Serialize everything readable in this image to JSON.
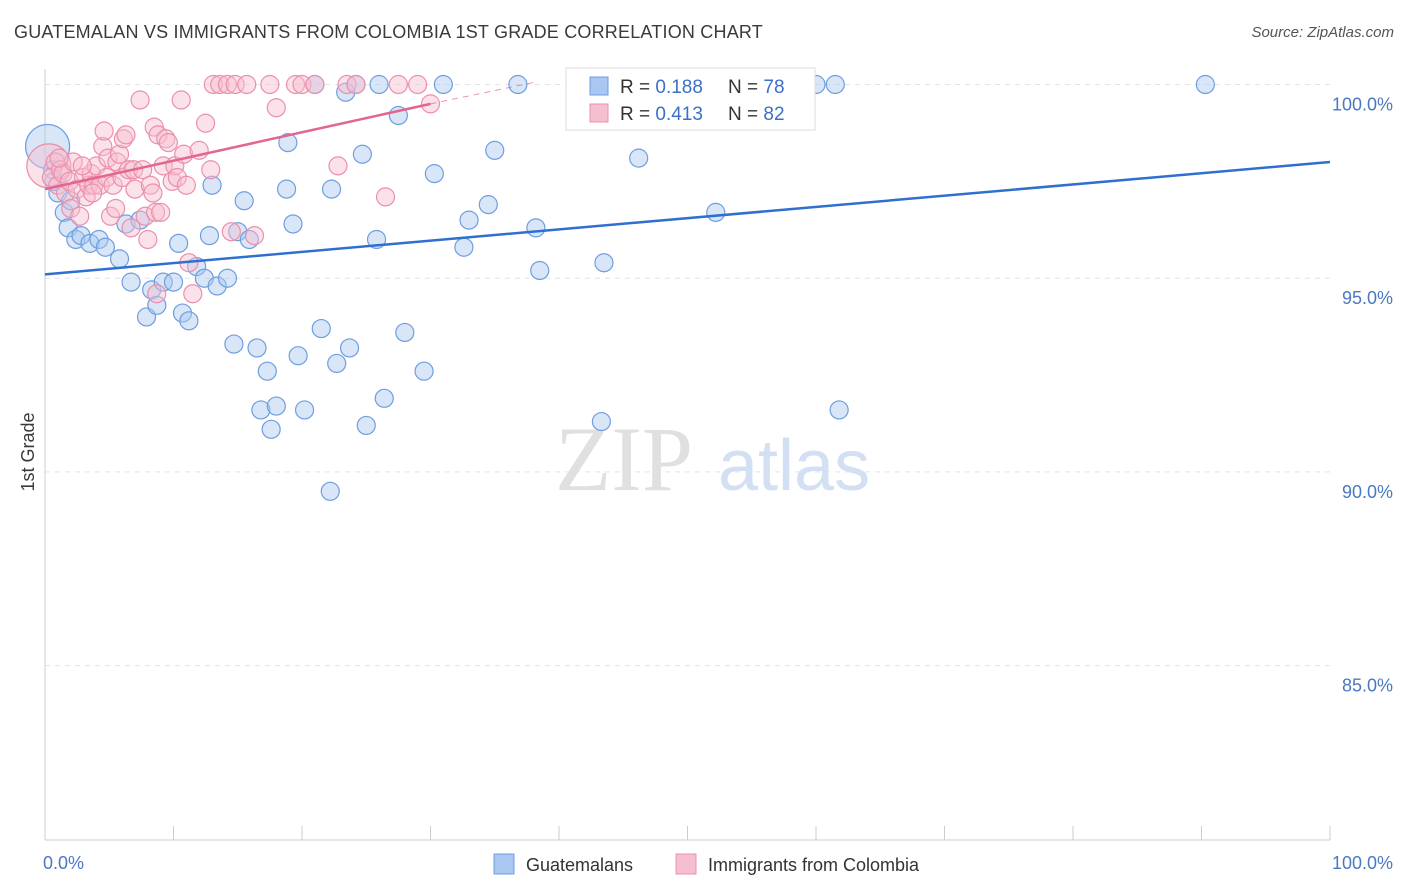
{
  "title": "GUATEMALAN VS IMMIGRANTS FROM COLOMBIA 1ST GRADE CORRELATION CHART",
  "source": "Source: ZipAtlas.com",
  "watermark": {
    "zip": "ZIP",
    "atlas": "atlas"
  },
  "chart_data": {
    "type": "scatter",
    "xlabel": "",
    "ylabel": "1st Grade",
    "xlim": [
      0,
      100
    ],
    "ylim": [
      80.5,
      100.4
    ],
    "x_tick_labels": [
      "0.0%",
      "100.0%"
    ],
    "y_ticks": [
      {
        "value": 100,
        "label": "100.0%"
      },
      {
        "value": 95,
        "label": "95.0%"
      },
      {
        "value": 90,
        "label": "90.0%"
      },
      {
        "value": 85,
        "label": "85.0%"
      }
    ],
    "legend_stats": [
      {
        "r_label": "R = ",
        "r_value": "0.188",
        "n_label": "N = ",
        "n_value": "78"
      },
      {
        "r_label": "R = ",
        "r_value": "0.413",
        "n_label": "N = ",
        "n_value": "82"
      }
    ],
    "series": [
      {
        "name": "Guatemalans",
        "color": "#6e9ee0",
        "fill": "#a9c7f0",
        "trend": {
          "x": [
            0,
            100
          ],
          "y": [
            95.1,
            98.0
          ],
          "color": "#2f6fcf"
        },
        "points": [
          {
            "x": 0.2,
            "y": 98.4,
            "big": true
          },
          {
            "x": 0.6,
            "y": 97.8
          },
          {
            "x": 1.0,
            "y": 97.2
          },
          {
            "x": 1.5,
            "y": 96.7
          },
          {
            "x": 1.8,
            "y": 96.3
          },
          {
            "x": 2.4,
            "y": 96.0
          },
          {
            "x": 2.8,
            "y": 96.1
          },
          {
            "x": 3.5,
            "y": 95.9
          },
          {
            "x": 4.2,
            "y": 96.0
          },
          {
            "x": 4.7,
            "y": 95.8
          },
          {
            "x": 5.8,
            "y": 95.5
          },
          {
            "x": 6.3,
            "y": 96.4
          },
          {
            "x": 6.7,
            "y": 94.9
          },
          {
            "x": 7.4,
            "y": 96.5
          },
          {
            "x": 7.9,
            "y": 94.0
          },
          {
            "x": 8.3,
            "y": 94.7
          },
          {
            "x": 8.7,
            "y": 94.3
          },
          {
            "x": 9.2,
            "y": 94.9
          },
          {
            "x": 10.0,
            "y": 94.9
          },
          {
            "x": 10.4,
            "y": 95.9
          },
          {
            "x": 10.7,
            "y": 94.1
          },
          {
            "x": 11.2,
            "y": 93.9
          },
          {
            "x": 11.8,
            "y": 95.3
          },
          {
            "x": 12.4,
            "y": 95.0
          },
          {
            "x": 12.8,
            "y": 96.1
          },
          {
            "x": 13.0,
            "y": 97.4
          },
          {
            "x": 13.4,
            "y": 94.8
          },
          {
            "x": 14.2,
            "y": 95.0
          },
          {
            "x": 14.7,
            "y": 93.3
          },
          {
            "x": 15.0,
            "y": 96.2
          },
          {
            "x": 15.5,
            "y": 97.0
          },
          {
            "x": 15.9,
            "y": 96.0
          },
          {
            "x": 16.5,
            "y": 93.2
          },
          {
            "x": 16.8,
            "y": 91.6
          },
          {
            "x": 17.3,
            "y": 92.6
          },
          {
            "x": 17.6,
            "y": 91.1
          },
          {
            "x": 18.0,
            "y": 91.7
          },
          {
            "x": 18.8,
            "y": 97.3
          },
          {
            "x": 18.9,
            "y": 98.5
          },
          {
            "x": 19.3,
            "y": 96.4
          },
          {
            "x": 19.7,
            "y": 93.0
          },
          {
            "x": 20.2,
            "y": 91.6
          },
          {
            "x": 21.0,
            "y": 100.0
          },
          {
            "x": 21.5,
            "y": 93.7
          },
          {
            "x": 22.2,
            "y": 89.5
          },
          {
            "x": 22.3,
            "y": 97.3
          },
          {
            "x": 22.7,
            "y": 92.8
          },
          {
            "x": 23.4,
            "y": 99.8
          },
          {
            "x": 23.7,
            "y": 93.2
          },
          {
            "x": 24.2,
            "y": 100.0
          },
          {
            "x": 24.7,
            "y": 98.2
          },
          {
            "x": 25.0,
            "y": 91.2
          },
          {
            "x": 25.8,
            "y": 96.0
          },
          {
            "x": 26.0,
            "y": 100.0
          },
          {
            "x": 26.4,
            "y": 91.9
          },
          {
            "x": 27.5,
            "y": 99.2
          },
          {
            "x": 28.0,
            "y": 93.6
          },
          {
            "x": 29.5,
            "y": 92.6
          },
          {
            "x": 30.3,
            "y": 97.7
          },
          {
            "x": 31.0,
            "y": 100.0
          },
          {
            "x": 32.6,
            "y": 95.8
          },
          {
            "x": 33.0,
            "y": 96.5
          },
          {
            "x": 34.5,
            "y": 96.9
          },
          {
            "x": 35.0,
            "y": 98.3
          },
          {
            "x": 36.8,
            "y": 100.0
          },
          {
            "x": 38.2,
            "y": 96.3
          },
          {
            "x": 38.5,
            "y": 95.2
          },
          {
            "x": 43.3,
            "y": 91.3
          },
          {
            "x": 43.5,
            "y": 95.4
          },
          {
            "x": 46.2,
            "y": 98.1
          },
          {
            "x": 52.2,
            "y": 96.7
          },
          {
            "x": 58.5,
            "y": 100.0
          },
          {
            "x": 60.0,
            "y": 100.0
          },
          {
            "x": 61.5,
            "y": 100.0
          },
          {
            "x": 61.8,
            "y": 91.6
          },
          {
            "x": 90.3,
            "y": 100.0
          },
          {
            "x": 0.7,
            "y": 97.5
          },
          {
            "x": 2.0,
            "y": 97.0
          }
        ]
      },
      {
        "name": "Immigrants from Colombia",
        "color": "#ec8fab",
        "fill": "#f6bfd0",
        "trend": {
          "x": [
            0,
            30
          ],
          "y": [
            97.3,
            99.5
          ],
          "dash_to": {
            "x": 38,
            "y": 100.05
          },
          "color": "#e2668d"
        },
        "points": [
          {
            "x": 0.3,
            "y": 97.9,
            "big": true
          },
          {
            "x": 0.5,
            "y": 97.6
          },
          {
            "x": 0.8,
            "y": 98.0
          },
          {
            "x": 1.0,
            "y": 97.4
          },
          {
            "x": 1.2,
            "y": 97.8
          },
          {
            "x": 1.4,
            "y": 97.7
          },
          {
            "x": 1.6,
            "y": 97.2
          },
          {
            "x": 1.9,
            "y": 97.5
          },
          {
            "x": 2.0,
            "y": 96.8
          },
          {
            "x": 2.2,
            "y": 98.0
          },
          {
            "x": 2.5,
            "y": 97.3
          },
          {
            "x": 2.7,
            "y": 96.6
          },
          {
            "x": 3.0,
            "y": 97.6
          },
          {
            "x": 3.2,
            "y": 97.1
          },
          {
            "x": 3.4,
            "y": 97.4
          },
          {
            "x": 3.6,
            "y": 97.7
          },
          {
            "x": 3.8,
            "y": 97.4
          },
          {
            "x": 4.0,
            "y": 97.9
          },
          {
            "x": 4.3,
            "y": 97.4
          },
          {
            "x": 4.5,
            "y": 98.4
          },
          {
            "x": 4.6,
            "y": 98.8
          },
          {
            "x": 4.8,
            "y": 97.6
          },
          {
            "x": 4.9,
            "y": 98.1
          },
          {
            "x": 5.1,
            "y": 96.6
          },
          {
            "x": 5.3,
            "y": 97.4
          },
          {
            "x": 5.5,
            "y": 96.8
          },
          {
            "x": 5.6,
            "y": 98.0
          },
          {
            "x": 5.8,
            "y": 98.2
          },
          {
            "x": 6.0,
            "y": 97.6
          },
          {
            "x": 6.1,
            "y": 98.6
          },
          {
            "x": 6.3,
            "y": 98.7
          },
          {
            "x": 6.5,
            "y": 97.8
          },
          {
            "x": 6.7,
            "y": 96.3
          },
          {
            "x": 6.9,
            "y": 97.8
          },
          {
            "x": 7.0,
            "y": 97.3
          },
          {
            "x": 7.4,
            "y": 99.6
          },
          {
            "x": 7.6,
            "y": 97.8
          },
          {
            "x": 7.8,
            "y": 96.6
          },
          {
            "x": 8.0,
            "y": 96.0
          },
          {
            "x": 8.2,
            "y": 97.4
          },
          {
            "x": 8.4,
            "y": 97.2
          },
          {
            "x": 8.5,
            "y": 98.9
          },
          {
            "x": 8.6,
            "y": 96.7
          },
          {
            "x": 8.7,
            "y": 94.6
          },
          {
            "x": 8.8,
            "y": 98.7
          },
          {
            "x": 9.0,
            "y": 96.7
          },
          {
            "x": 9.2,
            "y": 97.9
          },
          {
            "x": 9.4,
            "y": 98.6
          },
          {
            "x": 9.6,
            "y": 98.5
          },
          {
            "x": 9.9,
            "y": 97.5
          },
          {
            "x": 10.1,
            "y": 97.9
          },
          {
            "x": 10.3,
            "y": 97.6
          },
          {
            "x": 10.6,
            "y": 99.6
          },
          {
            "x": 10.8,
            "y": 98.2
          },
          {
            "x": 11.0,
            "y": 97.4
          },
          {
            "x": 11.2,
            "y": 95.4
          },
          {
            "x": 11.5,
            "y": 94.6
          },
          {
            "x": 12.0,
            "y": 98.3
          },
          {
            "x": 12.5,
            "y": 99.0
          },
          {
            "x": 12.9,
            "y": 97.8
          },
          {
            "x": 13.1,
            "y": 100.0
          },
          {
            "x": 13.6,
            "y": 100.0
          },
          {
            "x": 14.2,
            "y": 100.0
          },
          {
            "x": 14.5,
            "y": 96.2
          },
          {
            "x": 14.8,
            "y": 100.0
          },
          {
            "x": 15.7,
            "y": 100.0
          },
          {
            "x": 16.3,
            "y": 96.1
          },
          {
            "x": 17.5,
            "y": 100.0
          },
          {
            "x": 18.0,
            "y": 99.4
          },
          {
            "x": 19.5,
            "y": 100.0
          },
          {
            "x": 20.0,
            "y": 100.0
          },
          {
            "x": 21.0,
            "y": 100.0
          },
          {
            "x": 22.8,
            "y": 97.9
          },
          {
            "x": 23.5,
            "y": 100.0
          },
          {
            "x": 24.2,
            "y": 100.0
          },
          {
            "x": 26.5,
            "y": 97.1
          },
          {
            "x": 27.5,
            "y": 100.0
          },
          {
            "x": 29.0,
            "y": 100.0
          },
          {
            "x": 30.0,
            "y": 99.5
          },
          {
            "x": 1.1,
            "y": 98.1
          },
          {
            "x": 2.9,
            "y": 97.9
          },
          {
            "x": 3.7,
            "y": 97.2
          }
        ]
      }
    ]
  }
}
